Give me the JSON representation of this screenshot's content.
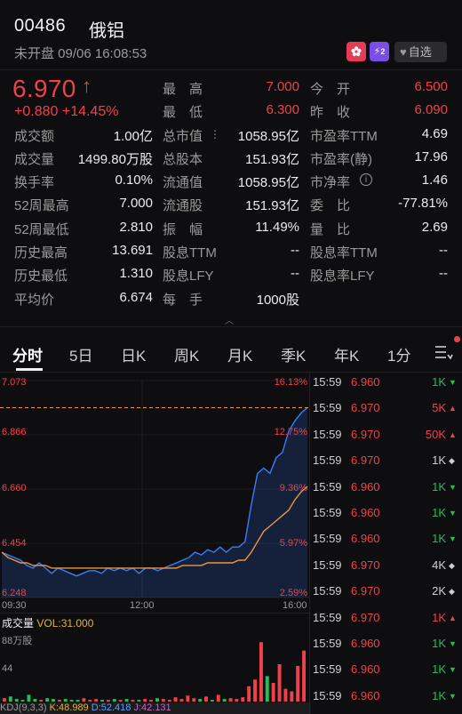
{
  "header": {
    "code": "00486",
    "name": "俄铝",
    "status": "未开盘 09/06 16:08:53",
    "level_badge": "2",
    "favorite_label": "自选"
  },
  "quote": {
    "price": "6.970",
    "arrow": "↑",
    "change": "+0.880",
    "change_pct": "+14.45%"
  },
  "stats": [
    {
      "l1": "最　高",
      "v1": "7.000",
      "l2": "今　开",
      "v2": "6.500"
    },
    {
      "l1": "最　低",
      "v1": "6.300",
      "l2": "昨　收",
      "v2": "6.090"
    },
    {
      "l0": "成交额",
      "v0": "1.00亿",
      "l1": "总市值",
      "v1": "1058.95亿",
      "l2": "市盈率TTM",
      "v2": "4.69"
    },
    {
      "l0": "成交量",
      "v0": "1499.80万股",
      "l1": "总股本",
      "v1": "151.93亿",
      "l2": "市盈率(静)",
      "v2": "17.96"
    },
    {
      "l0": "换手率",
      "v0": "0.10%",
      "l1": "流通值",
      "v1": "1058.95亿",
      "l2": "市净率",
      "v2": "1.46"
    },
    {
      "l0": "52周最高",
      "v0": "7.000",
      "l1": "流通股",
      "v1": "151.93亿",
      "l2": "委　比",
      "v2": "-77.81%"
    },
    {
      "l0": "52周最低",
      "v0": "2.810",
      "l1": "振　幅",
      "v1": "11.49%",
      "l2": "量　比",
      "v2": "2.69"
    },
    {
      "l0": "历史最高",
      "v0": "13.691",
      "l1": "股息TTM",
      "v1": "--",
      "l2": "股息率TTM",
      "v2": "--"
    },
    {
      "l0": "历史最低",
      "v0": "1.310",
      "l1": "股息LFY",
      "v1": "--",
      "l2": "股息率LFY",
      "v2": "--"
    },
    {
      "l0": "平均价",
      "v0": "6.674",
      "l1": "每　手",
      "v1": "1000股"
    }
  ],
  "tabs": [
    "分时",
    "5日",
    "日K",
    "周K",
    "月K",
    "季K",
    "年K",
    "1分"
  ],
  "chart": {
    "y_left": [
      "7.073",
      "6.866",
      "6.660",
      "6.454",
      "6.248"
    ],
    "y_right": [
      "16.13%",
      "12.75%",
      "9.36%",
      "5.97%",
      "2.59%"
    ],
    "x_labels": [
      "09:30",
      "12:00",
      "16:00"
    ],
    "volume_label": "成交量",
    "volume_value": "VOL:31.000",
    "volume_axis": [
      "88万股",
      "44"
    ],
    "indicator": "KDJ(9,3,3)",
    "indicator_k": "K:48.989",
    "indicator_d": "D:52.418",
    "indicator_j": "J:42.131"
  },
  "chart_data": {
    "type": "line",
    "ylim": [
      6.248,
      7.073
    ],
    "reference_price": 6.97,
    "series": [
      {
        "values": [
          6.42,
          6.41,
          6.4,
          6.39,
          6.37,
          6.36,
          6.38,
          6.36,
          6.34,
          6.36,
          6.35,
          6.34,
          6.33,
          6.34,
          6.35,
          6.35,
          6.34,
          6.36,
          6.35,
          6.36,
          6.35,
          6.36,
          6.34,
          6.36,
          6.36,
          6.35,
          6.36,
          6.37,
          6.38,
          6.39,
          6.4,
          6.42,
          6.41,
          6.43,
          6.42,
          6.44,
          6.42,
          6.44,
          6.44,
          6.46,
          6.6,
          6.72,
          6.74,
          6.72,
          6.78,
          6.8,
          6.88,
          6.92,
          6.95,
          6.97
        ]
      },
      {
        "values": [
          6.42,
          6.4,
          6.39,
          6.38,
          6.38,
          6.37,
          6.37,
          6.37,
          6.36,
          6.36,
          6.36,
          6.36,
          6.36,
          6.36,
          6.36,
          6.36,
          6.36,
          6.36,
          6.36,
          6.36,
          6.36,
          6.36,
          6.36,
          6.36,
          6.36,
          6.36,
          6.36,
          6.36,
          6.36,
          6.37,
          6.37,
          6.37,
          6.37,
          6.38,
          6.38,
          6.38,
          6.38,
          6.38,
          6.39,
          6.39,
          6.42,
          6.46,
          6.5,
          6.52,
          6.54,
          6.56,
          6.58,
          6.62,
          6.65,
          6.67
        ]
      }
    ],
    "volume": [
      4,
      6,
      3,
      2,
      8,
      3,
      2,
      4,
      3,
      2,
      3,
      2,
      2,
      4,
      2,
      3,
      2,
      2,
      3,
      2,
      3,
      2,
      2,
      3,
      2,
      4,
      3,
      2,
      5,
      3,
      7,
      4,
      3,
      6,
      2,
      8,
      3,
      4,
      3,
      5,
      18,
      26,
      70,
      30,
      22,
      44,
      15,
      12,
      42,
      60
    ]
  },
  "trades": [
    {
      "time": "15:59",
      "price": "6.960",
      "vol": "1K",
      "dir": "up"
    },
    {
      "time": "15:59",
      "price": "6.970",
      "vol": "5K",
      "dir": "down"
    },
    {
      "time": "15:59",
      "price": "6.970",
      "vol": "50K",
      "dir": "down"
    },
    {
      "time": "15:59",
      "price": "6.970",
      "vol": "1K",
      "dir": "neutral"
    },
    {
      "time": "15:59",
      "price": "6.960",
      "vol": "1K",
      "dir": "up"
    },
    {
      "time": "15:59",
      "price": "6.960",
      "vol": "1K",
      "dir": "up"
    },
    {
      "time": "15:59",
      "price": "6.960",
      "vol": "1K",
      "dir": "up"
    },
    {
      "time": "15:59",
      "price": "6.970",
      "vol": "4K",
      "dir": "neutral"
    },
    {
      "time": "15:59",
      "price": "6.970",
      "vol": "2K",
      "dir": "neutral"
    },
    {
      "time": "15:59",
      "price": "6.970",
      "vol": "1K",
      "dir": "down"
    },
    {
      "time": "15:59",
      "price": "6.960",
      "vol": "1K",
      "dir": "up"
    },
    {
      "time": "15:59",
      "price": "6.960",
      "vol": "1K",
      "dir": "up"
    },
    {
      "time": "15:59",
      "price": "6.960",
      "vol": "1K",
      "dir": "up"
    }
  ],
  "colors": {
    "up": "#f0414b",
    "down": "#1fc05a",
    "line": "#3a7cff",
    "avg": "#f0953a"
  }
}
